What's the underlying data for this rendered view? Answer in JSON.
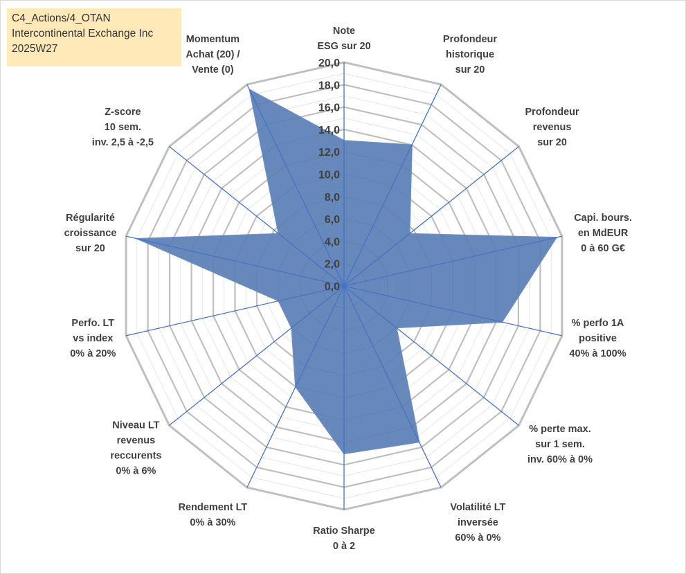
{
  "title_box": {
    "line1": "C4_Actions/4_OTAN",
    "line2": "Intercontinental Exchange Inc",
    "line3": "2025W27"
  },
  "chart_data": {
    "type": "radar",
    "title": "",
    "categories": [
      [
        "Note",
        "ESG sur 20"
      ],
      [
        "Profondeur",
        "historique",
        "sur 20"
      ],
      [
        "Profondeur",
        "revenus",
        "sur 20"
      ],
      [
        "Capi. bours.",
        "en MdEUR",
        "0 à 60 G€"
      ],
      [
        "% perfo 1A",
        "positive",
        "40% à 100%"
      ],
      [
        "% perte max.",
        "sur 1 sem.",
        "inv. 60% à 0%"
      ],
      [
        "Volatilité LT",
        "inversée",
        "60% à 0%"
      ],
      [
        "Ratio Sharpe",
        "0 à 2"
      ],
      [
        "Rendement LT",
        "0% à 30%"
      ],
      [
        "Niveau LT",
        "revenus",
        "reccurents",
        "0% à 6%"
      ],
      [
        "Perfo. LT",
        "vs index",
        "0% à 20%"
      ],
      [
        "Régularité",
        "croissance",
        "sur 20"
      ],
      [
        "Z-score",
        "10 sem.",
        "inv. 2,5 à -2,5"
      ],
      [
        "Momentum",
        "Achat (20) /",
        "Vente (0)"
      ]
    ],
    "series": [
      {
        "values": [
          13.0,
          14.0,
          7.5,
          19.5,
          14.5,
          6.0,
          15.5,
          15.0,
          10.0,
          6.0,
          6.0,
          19.0,
          7.5,
          19.5
        ]
      }
    ],
    "rlim": [
      0,
      20
    ],
    "ticks": [
      "0,0",
      "2,0",
      "4,0",
      "6,0",
      "8,0",
      "10,0",
      "12,0",
      "14,0",
      "16,0",
      "18,0",
      "20,0"
    ],
    "grid": true,
    "legend": "none",
    "colors": {
      "fill": "#5b7fb5",
      "stroke": "#6a8cc2",
      "spoke": "#4472c4",
      "major_grid": "#bfbfbf",
      "minor_grid": "#e6e6e6",
      "text": "#404040"
    }
  }
}
